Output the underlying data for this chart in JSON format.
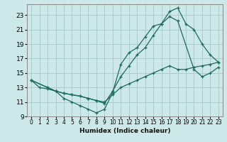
{
  "xlabel": "Humidex (Indice chaleur)",
  "bg_color": "#cce8e8",
  "grid_color": "#aacccc",
  "line_color": "#1a6b5a",
  "xlim": [
    -0.5,
    23.5
  ],
  "ylim": [
    9,
    24.5
  ],
  "xticks": [
    0,
    1,
    2,
    3,
    4,
    5,
    6,
    7,
    8,
    9,
    10,
    11,
    12,
    13,
    14,
    15,
    16,
    17,
    18,
    19,
    20,
    21,
    22,
    23
  ],
  "yticks": [
    9,
    11,
    13,
    15,
    17,
    19,
    21,
    23
  ],
  "line1_x": [
    0,
    1,
    2,
    3,
    4,
    5,
    6,
    7,
    8,
    9,
    10,
    11,
    12,
    13,
    14,
    15,
    16,
    17,
    18,
    19,
    20,
    21,
    22,
    23
  ],
  "line1_y": [
    14.0,
    13.0,
    12.8,
    12.5,
    11.5,
    11.0,
    10.5,
    10.0,
    9.5,
    10.0,
    12.3,
    16.2,
    17.8,
    18.5,
    20.0,
    21.5,
    21.8,
    23.5,
    24.0,
    21.8,
    21.0,
    19.0,
    17.5,
    16.5
  ],
  "line2_x": [
    0,
    2,
    3,
    4,
    5,
    6,
    7,
    8,
    9,
    10,
    11,
    12,
    13,
    14,
    15,
    16,
    17,
    18,
    20,
    21,
    22,
    23
  ],
  "line2_y": [
    14.0,
    13.0,
    12.5,
    12.2,
    12.0,
    11.8,
    11.5,
    11.2,
    10.8,
    12.5,
    14.5,
    16.0,
    17.5,
    18.5,
    20.2,
    21.8,
    22.8,
    22.2,
    15.5,
    14.5,
    15.0,
    15.8
  ],
  "line3_x": [
    0,
    2,
    3,
    4,
    5,
    6,
    7,
    8,
    9,
    10,
    11,
    12,
    13,
    14,
    15,
    16,
    17,
    18,
    19,
    20,
    21,
    22,
    23
  ],
  "line3_y": [
    14.0,
    13.0,
    12.5,
    12.2,
    12.0,
    11.8,
    11.5,
    11.2,
    11.0,
    12.0,
    13.0,
    13.5,
    14.0,
    14.5,
    15.0,
    15.5,
    16.0,
    15.5,
    15.5,
    15.8,
    16.0,
    16.2,
    16.5
  ]
}
